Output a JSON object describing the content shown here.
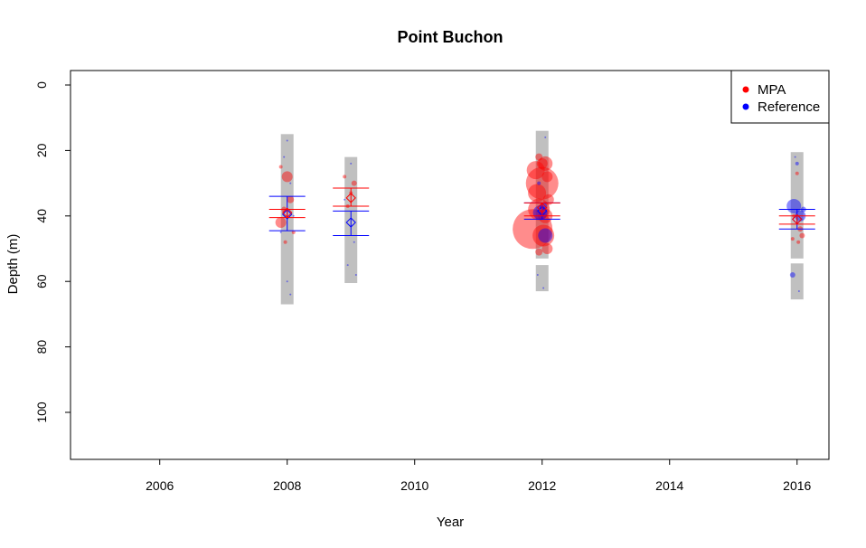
{
  "chart_data": {
    "type": "scatter",
    "title": "Point Buchon",
    "xlabel": "Year",
    "ylabel": "Depth (m)",
    "xlim": [
      2004.6,
      2016.5
    ],
    "ylim": [
      0,
      115
    ],
    "y_reversed": true,
    "x_ticks": [
      2006,
      2008,
      2010,
      2012,
      2014,
      2016
    ],
    "y_ticks": [
      0,
      20,
      40,
      60,
      80,
      100
    ],
    "legend": {
      "position": "top-right",
      "entries": [
        {
          "name": "MPA",
          "color": "#ff0000"
        },
        {
          "name": "Reference",
          "color": "#0000ff"
        }
      ]
    },
    "depth_ranges": [
      {
        "year": 2008,
        "segments": [
          [
            15,
            67
          ]
        ]
      },
      {
        "year": 2009,
        "segments": [
          [
            22,
            60.5
          ]
        ]
      },
      {
        "year": 2012,
        "segments": [
          [
            14,
            53
          ],
          [
            55,
            63
          ]
        ]
      },
      {
        "year": 2016,
        "segments": [
          [
            20.5,
            53
          ],
          [
            54.5,
            65.5
          ]
        ]
      }
    ],
    "summary": [
      {
        "year": 2008,
        "mpa_mean": 39,
        "mpa_ci": [
          38,
          40.5
        ],
        "ref_mean": 39.5,
        "ref_ci": [
          34,
          44.5
        ]
      },
      {
        "year": 2009,
        "mpa_mean": 34.5,
        "mpa_ci": [
          31.5,
          37
        ],
        "ref_mean": 42,
        "ref_ci": [
          38.5,
          46
        ]
      },
      {
        "year": 2012,
        "mpa_mean": 37.5,
        "mpa_ci": [
          36,
          40
        ],
        "ref_mean": 38.5,
        "ref_ci": [
          36,
          41
        ]
      },
      {
        "year": 2016,
        "mpa_mean": 41,
        "mpa_ci": [
          40,
          42.5
        ],
        "ref_mean": 41,
        "ref_ci": [
          38,
          44
        ]
      }
    ],
    "series": [
      {
        "name": "MPA",
        "color": "#ff0000",
        "points": [
          [
            2007.9,
            25,
            1
          ],
          [
            2008.0,
            28,
            3
          ],
          [
            2008.05,
            35,
            2
          ],
          [
            2007.95,
            38,
            1.5
          ],
          [
            2007.9,
            42,
            3
          ],
          [
            2008.1,
            45,
            1
          ],
          [
            2007.97,
            48,
            1
          ],
          [
            2008.9,
            28,
            1
          ],
          [
            2009.05,
            30,
            1.5
          ],
          [
            2009.0,
            33,
            1
          ],
          [
            2008.95,
            37,
            1
          ],
          [
            2011.95,
            22,
            2
          ],
          [
            2012.05,
            24,
            4
          ],
          [
            2011.9,
            26,
            5
          ],
          [
            2012.08,
            28,
            3
          ],
          [
            2012.0,
            30,
            9
          ],
          [
            2011.92,
            33,
            5
          ],
          [
            2012.1,
            35,
            3
          ],
          [
            2011.95,
            38,
            6
          ],
          [
            2012.05,
            40,
            4
          ],
          [
            2011.85,
            44,
            11
          ],
          [
            2012.02,
            46,
            6
          ],
          [
            2012.08,
            50,
            3
          ],
          [
            2011.95,
            51,
            2
          ],
          [
            2012.0,
            24,
            3
          ],
          [
            2016.0,
            27,
            1
          ],
          [
            2015.95,
            40,
            1
          ],
          [
            2016.05,
            44,
            1.5
          ],
          [
            2016.08,
            46,
            1.5
          ],
          [
            2015.93,
            47,
            1
          ],
          [
            2016.02,
            48,
            1
          ]
        ]
      },
      {
        "name": "Reference",
        "color": "#0000ff",
        "points": [
          [
            2008.0,
            17,
            0.5
          ],
          [
            2007.95,
            22,
            0.5
          ],
          [
            2008.05,
            30,
            0.5
          ],
          [
            2008.1,
            40,
            0.5
          ],
          [
            2007.9,
            45,
            0.5
          ],
          [
            2008.0,
            60,
            0.5
          ],
          [
            2008.05,
            64,
            0.5
          ],
          [
            2009.0,
            24,
            0.5
          ],
          [
            2008.9,
            35,
            0.5
          ],
          [
            2009.05,
            48,
            0.5
          ],
          [
            2008.95,
            55,
            0.5
          ],
          [
            2009.08,
            58,
            0.5
          ],
          [
            2012.05,
            16,
            0.5
          ],
          [
            2011.95,
            30,
            1
          ],
          [
            2012.02,
            37,
            2
          ],
          [
            2011.97,
            39,
            4
          ],
          [
            2012.05,
            46,
            4
          ],
          [
            2011.93,
            58,
            0.5
          ],
          [
            2012.02,
            62,
            0.5
          ],
          [
            2015.97,
            22,
            0.5
          ],
          [
            2016.0,
            24,
            1
          ],
          [
            2015.95,
            37,
            4
          ],
          [
            2016.05,
            40,
            3
          ],
          [
            2016.1,
            38,
            1.5
          ],
          [
            2015.93,
            58,
            1.5
          ],
          [
            2016.03,
            63,
            0.5
          ]
        ]
      }
    ]
  }
}
